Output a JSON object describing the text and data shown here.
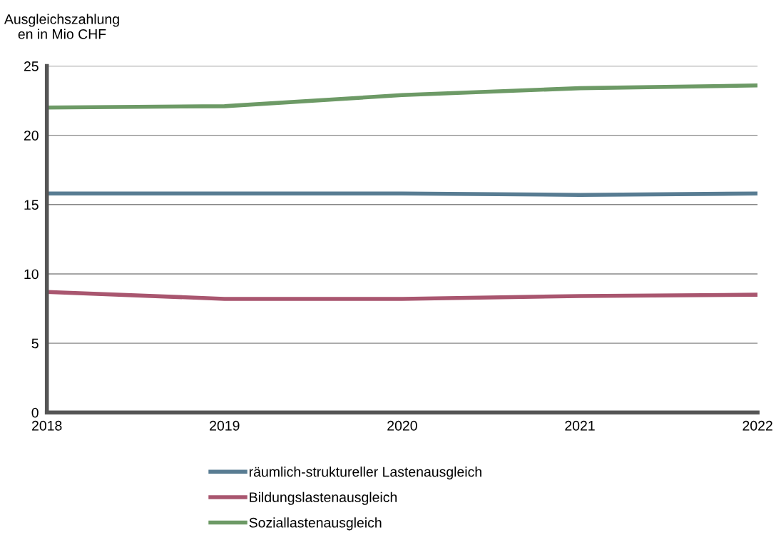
{
  "chart_data": {
    "type": "line",
    "ylabel": "Ausgleichszahlung\nen in Mio CHF",
    "categories": [
      "2018",
      "2019",
      "2020",
      "2021",
      "2022"
    ],
    "series": [
      {
        "name": "räumlich-struktureller Lastenausgleich",
        "color": "#587c92",
        "values": [
          15.8,
          15.8,
          15.8,
          15.7,
          15.8
        ]
      },
      {
        "name": "Bildungslastenausgleich",
        "color": "#a9566f",
        "values": [
          8.7,
          8.2,
          8.2,
          8.4,
          8.5
        ]
      },
      {
        "name": "Soziallastenausgleich",
        "color": "#6d9a66",
        "values": [
          22.0,
          22.1,
          22.9,
          23.4,
          23.6
        ]
      }
    ],
    "ylim": [
      0,
      25
    ],
    "yticks": [
      0,
      5,
      10,
      15,
      20,
      25
    ],
    "grid": "y",
    "legend": "bottom",
    "marker": "none",
    "line_style": "solid"
  }
}
